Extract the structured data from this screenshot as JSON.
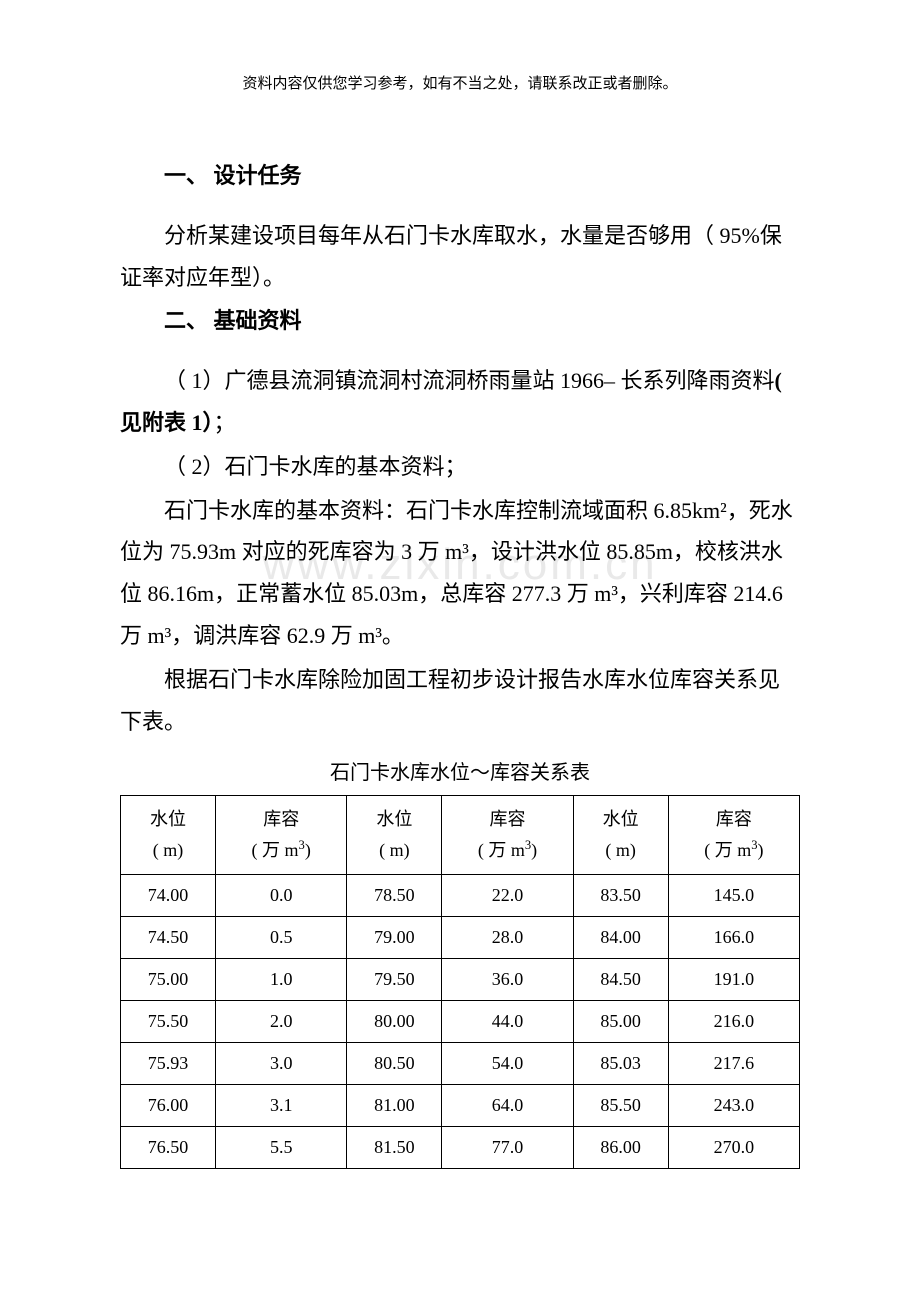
{
  "header_note": "资料内容仅供您学习参考，如有不当之处，请联系改正或者删除。",
  "watermark": "www.zixin.com.cn",
  "sections": {
    "s1_title": "一、 设计任务",
    "s1_p1": "分析某建设项目每年从石门卡水库取水，水量是否够用（ 95%保证率对应年型）。",
    "s2_title": "二、 基础资料",
    "s2_p1_a": "（ 1）广德县流洞镇流洞村流洞桥雨量站 1966– 长系列降雨资料",
    "s2_p1_b": "( 见附表 1）",
    "s2_p1_c": "；",
    "s2_p2": "（ 2）石门卡水库的基本资料；",
    "s2_p3": "石门卡水库的基本资料：石门卡水库控制流域面积 6.85km²，死水位为 75.93m 对应的死库容为 3 万 m³，设计洪水位 85.85m，校核洪水位 86.16m，正常蓄水位 85.03m，总库容 277.3 万 m³，兴利库容 214.6 万 m³，调洪库容 62.9 万 m³。",
    "s2_p4": "根据石门卡水库除险加固工程初步设计报告水库水位库容关系见下表。"
  },
  "table": {
    "caption": "石门卡水库水位～库容关系表",
    "header": {
      "col_wl": "水位",
      "col_wl_unit": "( m)",
      "col_cap": "库容",
      "col_cap_unit_a": "( 万 m",
      "col_cap_unit_b": ")"
    },
    "columns": [
      "水位 (m)",
      "库容 (万 m³)",
      "水位 (m)",
      "库容 (万 m³)",
      "水位 (m)",
      "库容 (万 m³)"
    ],
    "rows": [
      [
        "74.00",
        "0.0",
        "78.50",
        "22.0",
        "83.50",
        "145.0"
      ],
      [
        "74.50",
        "0.5",
        "79.00",
        "28.0",
        "84.00",
        "166.0"
      ],
      [
        "75.00",
        "1.0",
        "79.50",
        "36.0",
        "84.50",
        "191.0"
      ],
      [
        "75.50",
        "2.0",
        "80.00",
        "44.0",
        "85.00",
        "216.0"
      ],
      [
        "75.93",
        "3.0",
        "80.50",
        "54.0",
        "85.03",
        "217.6"
      ],
      [
        "76.00",
        "3.1",
        "81.00",
        "64.0",
        "85.50",
        "243.0"
      ],
      [
        "76.50",
        "5.5",
        "81.50",
        "77.0",
        "86.00",
        "270.0"
      ]
    ],
    "col_widths_pct": [
      16.6,
      16.6,
      16.6,
      16.6,
      16.6,
      16.6
    ],
    "border_color": "#000000",
    "font_size_pt": 13
  },
  "colors": {
    "text": "#000000",
    "background": "#ffffff",
    "watermark": "#e9e9e9",
    "table_border": "#000000"
  },
  "typography": {
    "body_font": "SimSun",
    "body_size_pt": 16,
    "heading_weight": "bold",
    "line_height": 1.9
  }
}
